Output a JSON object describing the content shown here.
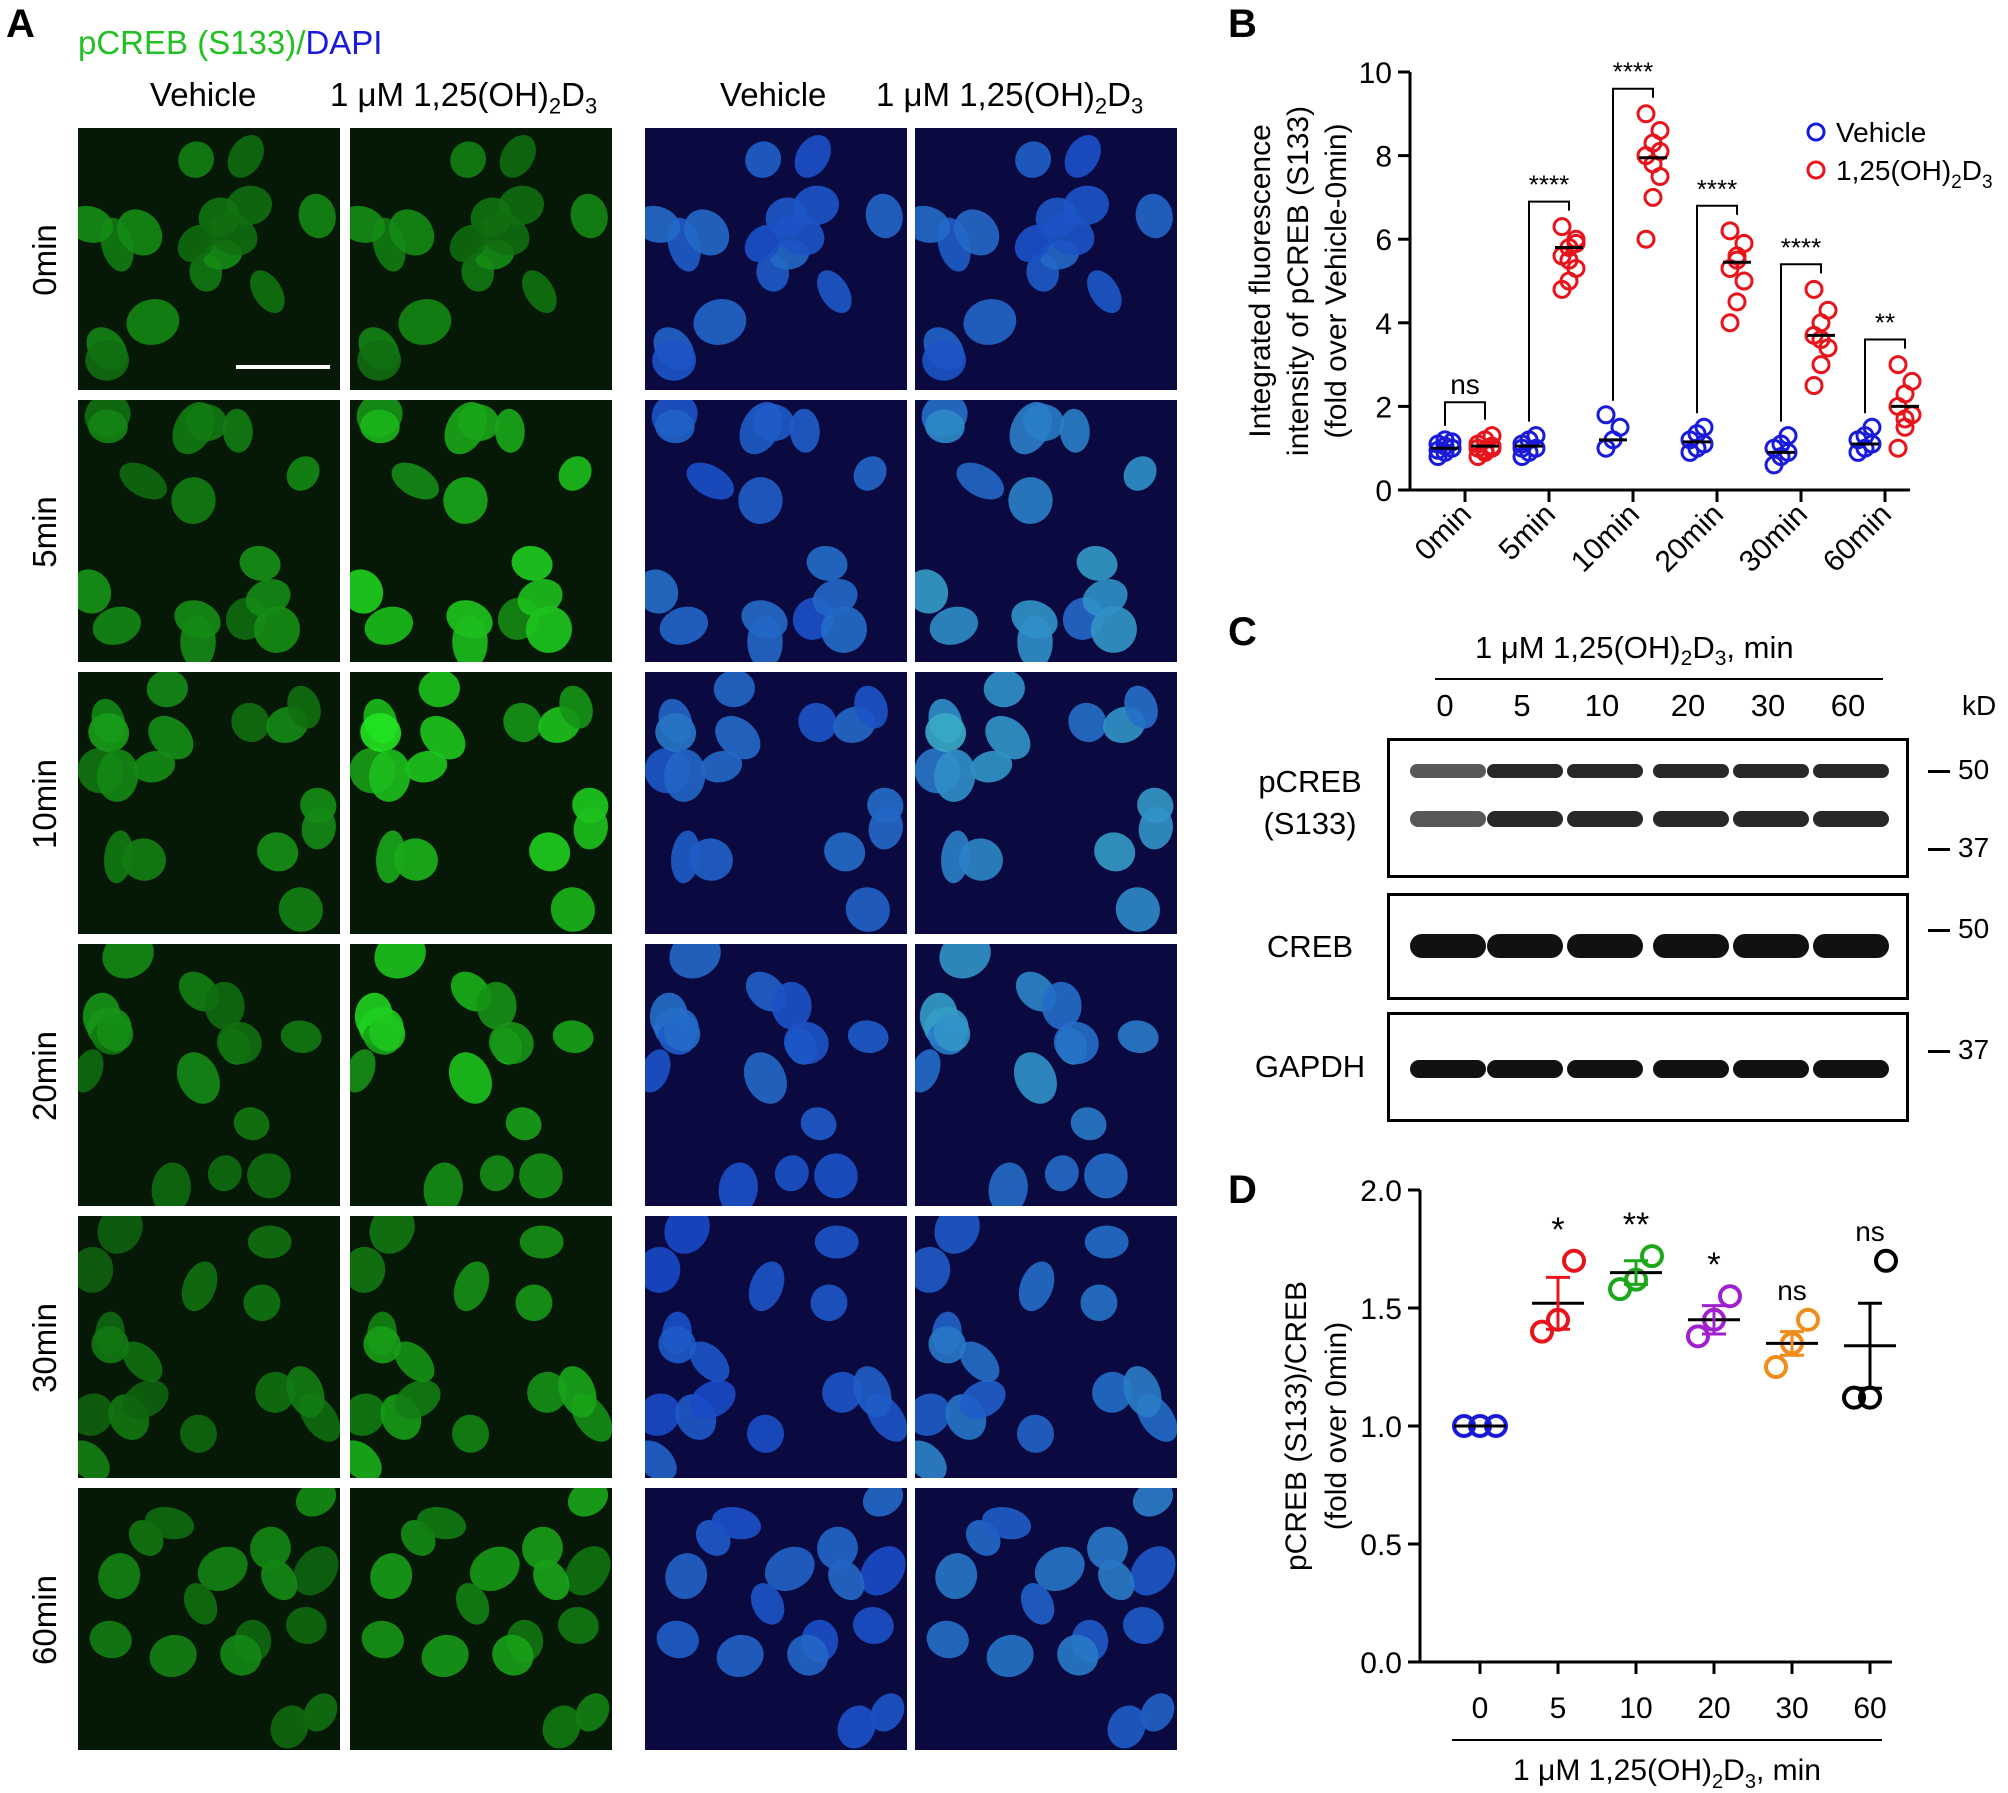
{
  "panelA": {
    "label": "A",
    "title_green": "pCREB (S133)",
    "title_sep": "/",
    "title_blue": "DAPI",
    "col_vehicle": "Vehicle",
    "col_treat_prefix": "1 μM 1,25(OH)",
    "col_treat_sub1": "2",
    "col_treat_mid": "D",
    "col_treat_sub2": "3",
    "rows": [
      "0min",
      "5min",
      "10min",
      "20min",
      "30min",
      "60min"
    ],
    "green_intensity_vehicle": [
      0.45,
      0.5,
      0.55,
      0.5,
      0.4,
      0.45
    ],
    "green_intensity_treated": [
      0.45,
      0.85,
      0.95,
      0.85,
      0.65,
      0.6
    ]
  },
  "panelB": {
    "label": "B",
    "legend": [
      "Vehicle",
      "1,25(OH)",
      "2",
      "D",
      "3"
    ],
    "ylabel_lines": [
      "Integrated fluorescence",
      "intensity of pCREB (S133)",
      "(fold over Vehicle-0min)"
    ],
    "significance": [
      "ns",
      "****",
      "****",
      "****",
      "****",
      "**"
    ],
    "colors": {
      "vehicle": "#1a1adb",
      "treated": "#e8141b"
    },
    "chart_data": {
      "type": "scatter",
      "categories": [
        "0min",
        "5min",
        "10min",
        "20min",
        "30min",
        "60min"
      ],
      "ylim": [
        0,
        10
      ],
      "yticks": [
        0,
        2,
        4,
        6,
        8,
        10
      ],
      "series": [
        {
          "name": "Vehicle",
          "means": [
            1.0,
            1.05,
            1.2,
            1.15,
            0.9,
            1.1
          ],
          "points": [
            [
              0.8,
              0.9,
              1.0,
              1.1,
              1.2,
              1.0,
              0.95,
              1.05,
              1.15
            ],
            [
              0.8,
              0.9,
              1.0,
              1.1,
              1.2,
              1.3,
              1.0
            ],
            [
              1.0,
              1.2,
              1.5,
              1.8
            ],
            [
              0.9,
              1.0,
              1.1,
              1.2,
              1.35,
              1.5
            ],
            [
              0.6,
              0.8,
              0.9,
              1.0,
              1.1,
              1.3
            ],
            [
              0.9,
              1.0,
              1.1,
              1.2,
              1.3,
              1.5
            ]
          ]
        },
        {
          "name": "1,25(OH)2D3",
          "means": [
            1.05,
            5.8,
            7.95,
            5.45,
            3.7,
            2.0
          ],
          "points": [
            [
              0.8,
              0.9,
              1.0,
              1.1,
              1.2,
              1.3,
              1.0,
              0.95,
              1.05
            ],
            [
              4.8,
              5.0,
              5.3,
              5.6,
              5.8,
              6.0,
              6.3,
              5.5,
              5.9
            ],
            [
              6.0,
              7.0,
              7.5,
              8.0,
              8.3,
              8.6,
              9.0,
              7.8,
              8.1
            ],
            [
              4.0,
              4.5,
              5.0,
              5.3,
              5.6,
              5.9,
              6.2,
              5.5
            ],
            [
              2.5,
              3.0,
              3.4,
              3.7,
              4.0,
              4.3,
              4.8,
              3.6
            ],
            [
              1.0,
              1.5,
              1.8,
              2.0,
              2.3,
              2.6,
              3.0,
              1.7
            ]
          ]
        }
      ]
    }
  },
  "panelC": {
    "label": "C",
    "header_prefix": "1 μM 1,25(OH)",
    "header_sub1": "2",
    "header_mid": "D",
    "header_sub2": "3",
    "header_suffix": ", min",
    "lanes": [
      "0",
      "5",
      "10",
      "20",
      "30",
      "60"
    ],
    "kd_label": "kD",
    "blots": [
      {
        "name1": "pCREB",
        "name2": "(S133)",
        "markers": [
          "50",
          "37"
        ]
      },
      {
        "name1": "CREB",
        "name2": "",
        "markers": [
          "50"
        ]
      },
      {
        "name1": "GAPDH",
        "name2": "",
        "markers": [
          "37"
        ]
      }
    ]
  },
  "panelD": {
    "label": "D",
    "ylabel_lines": [
      "pCREB (S133)/CREB",
      "(fold over 0min)"
    ],
    "xlabel_prefix": "1 μM 1,25(OH)",
    "xlabel_sub1": "2",
    "xlabel_mid": "D",
    "xlabel_sub2": "3",
    "xlabel_suffix": ", min",
    "significance": [
      "",
      "*",
      "**",
      "*",
      "ns",
      "ns"
    ],
    "colors": [
      "#1a1adb",
      "#e8141b",
      "#1aa81a",
      "#a020d0",
      "#f08c1a",
      "#000000"
    ],
    "chart_data": {
      "type": "scatter",
      "categories": [
        "0",
        "5",
        "10",
        "20",
        "30",
        "60"
      ],
      "ylim": [
        0.0,
        2.0
      ],
      "yticks": [
        "0.0",
        "0.5",
        "1.0",
        "1.5",
        "2.0"
      ],
      "means": [
        1.0,
        1.52,
        1.65,
        1.45,
        1.35,
        1.34
      ],
      "sem": [
        0.0,
        0.11,
        0.05,
        0.06,
        0.05,
        0.18
      ],
      "points": [
        [
          1.0,
          1.0,
          1.0
        ],
        [
          1.4,
          1.45,
          1.7
        ],
        [
          1.58,
          1.62,
          1.72
        ],
        [
          1.38,
          1.45,
          1.55
        ],
        [
          1.25,
          1.35,
          1.45
        ],
        [
          1.12,
          1.12,
          1.7
        ]
      ]
    }
  }
}
